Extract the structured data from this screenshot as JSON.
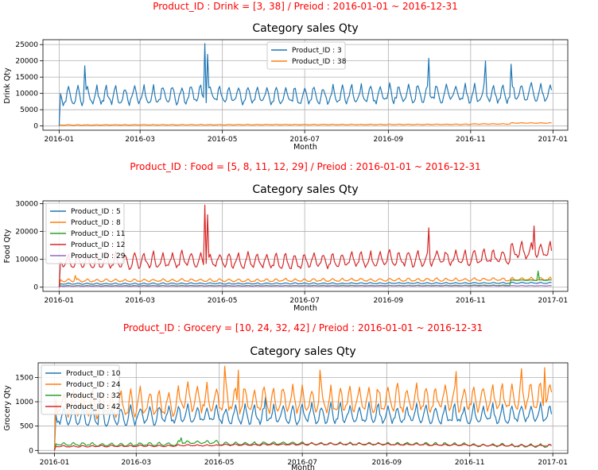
{
  "colors": {
    "suptitle": "#ff0000",
    "series": [
      "#1f77b4",
      "#ff7f0e",
      "#2ca02c",
      "#d62728",
      "#9467bd"
    ],
    "grid": "#b0b0b0"
  },
  "chart_data": [
    {
      "type": "line",
      "suptitle": "Product_ID : Drink = [3, 38] / Preiod : 2016-01-01 ~ 2016-12-31",
      "title": "Category sales Qty",
      "xlabel": "Month",
      "ylabel": "Drink Qty",
      "xlim": [
        "2015-12-20",
        "2017-01-12"
      ],
      "ylim": [
        -1300,
        26500
      ],
      "yticks": [
        0,
        5000,
        10000,
        15000,
        20000,
        25000
      ],
      "xticks": [
        "2016-01",
        "2016-03",
        "2016-05",
        "2016-07",
        "2016-09",
        "2016-11",
        "2017-01"
      ],
      "grid": true,
      "legend_position": "upper-center",
      "series": [
        {
          "name": "Product_ID : 3",
          "color_index": 0,
          "base": [
            8500,
            8600,
            8800,
            9000,
            8700,
            8600,
            8700,
            8900,
            9200,
            9300,
            9100,
            9600
          ],
          "amp": 5000,
          "start": 0,
          "peaks": [
            [
              19,
              18500
            ],
            [
              108,
              25300
            ],
            [
              110,
              22000
            ],
            [
              274,
              20800
            ],
            [
              316,
              20000
            ],
            [
              335,
              19000
            ]
          ]
        },
        {
          "name": "Product_ID : 38",
          "color_index": 1,
          "base": [
            300,
            330,
            350,
            380,
            400,
            420,
            430,
            450,
            470,
            500,
            600,
            900
          ],
          "amp": 150,
          "start": 0,
          "peaks": []
        }
      ]
    },
    {
      "type": "line",
      "suptitle": "Product_ID : Food = [5, 8, 11, 12, 29] / Preiod : 2016-01-01 ~ 2016-12-31",
      "title": "Category sales Qty",
      "xlabel": "Month",
      "ylabel": "Food Qty",
      "xlim": [
        "2015-12-20",
        "2017-01-12"
      ],
      "ylim": [
        -1500,
        31000
      ],
      "yticks": [
        0,
        10000,
        20000,
        30000
      ],
      "xticks": [
        "2016-01",
        "2016-03",
        "2016-05",
        "2016-07",
        "2016-09",
        "2016-11",
        "2017-01"
      ],
      "grid": true,
      "legend_position": "upper-left",
      "series": [
        {
          "name": "Product_ID : 5",
          "color_index": 0,
          "base": [
            1200,
            1200,
            1250,
            1300,
            1250,
            1300,
            1300,
            1350,
            1400,
            1400,
            1450,
            1500
          ],
          "amp": 400,
          "start": 0,
          "peaks": []
        },
        {
          "name": "Product_ID : 8",
          "color_index": 1,
          "base": [
            2300,
            2300,
            2350,
            2400,
            2350,
            2400,
            2450,
            2500,
            2550,
            2600,
            2650,
            2800
          ],
          "amp": 1000,
          "start": 0,
          "peaks": [
            [
              12,
              4200
            ]
          ]
        },
        {
          "name": "Product_ID : 11",
          "color_index": 2,
          "base": [
            500,
            500,
            520,
            540,
            520,
            540,
            550,
            560,
            580,
            600,
            650,
            2500
          ],
          "amp": 200,
          "start": 0,
          "peaks": [
            [
              355,
              5800
            ]
          ]
        },
        {
          "name": "Product_ID : 12",
          "color_index": 3,
          "base": [
            8500,
            8700,
            9000,
            9200,
            8800,
            8700,
            8900,
            9100,
            9500,
            9700,
            10200,
            12500
          ],
          "amp": 5000,
          "start": 0,
          "peaks": [
            [
              108,
              29500
            ],
            [
              110,
              26000
            ],
            [
              274,
              21300
            ],
            [
              352,
              22000
            ]
          ]
        },
        {
          "name": "Product_ID : 29",
          "color_index": 4,
          "base": [
            400,
            400,
            420,
            430,
            420,
            430,
            440,
            450,
            460,
            470,
            480,
            500
          ],
          "amp": 150,
          "start": 0,
          "peaks": []
        }
      ]
    },
    {
      "type": "line",
      "suptitle": "Product_ID : Grocery = [10, 24, 32, 42] / Preiod : 2016-01-01 ~ 2016-12-31",
      "title": "Category sales Qty",
      "xlabel": "Month",
      "ylabel": "Grocery Qty",
      "xlim": [
        "2015-12-20",
        "2017-01-12"
      ],
      "ylim": [
        -60,
        1800
      ],
      "yticks": [
        0,
        500,
        1000,
        1500
      ],
      "xticks": [
        "2016-01",
        "2016-03",
        "2016-05",
        "2016-07",
        "2016-09",
        "2016-11",
        "2017-01"
      ],
      "grid": true,
      "legend_position": "upper-left",
      "series": [
        {
          "name": "Product_ID : 10",
          "color_index": 0,
          "base": [
            650,
            650,
            680,
            700,
            680,
            690,
            700,
            700,
            700,
            690,
            690,
            700
          ],
          "amp": 350,
          "start": 0,
          "peaks": [
            [
              33,
              1050
            ],
            [
              155,
              1100
            ]
          ]
        },
        {
          "name": "Product_ID : 24",
          "color_index": 1,
          "base": [
            900,
            880,
            920,
            1000,
            980,
            960,
            960,
            970,
            990,
            1000,
            1000,
            1050
          ],
          "amp": 500,
          "start": 0,
          "peaks": [
            [
              125,
              1730
            ],
            [
              135,
              1650
            ],
            [
              195,
              1650
            ],
            [
              295,
              1620
            ],
            [
              343,
              1680
            ],
            [
              360,
              1700
            ]
          ]
        },
        {
          "name": "Product_ID : 32",
          "color_index": 2,
          "base": [
            120,
            110,
            120,
            160,
            130,
            140,
            130,
            130,
            130,
            120,
            100,
            90
          ],
          "amp": 60,
          "start": 0,
          "peaks": [
            [
              93,
              260
            ]
          ]
        },
        {
          "name": "Product_ID : 42",
          "color_index": 3,
          "base": [
            80,
            85,
            90,
            100,
            110,
            120,
            130,
            130,
            120,
            110,
            100,
            95
          ],
          "amp": 30,
          "start": 0,
          "peaks": []
        }
      ]
    }
  ]
}
